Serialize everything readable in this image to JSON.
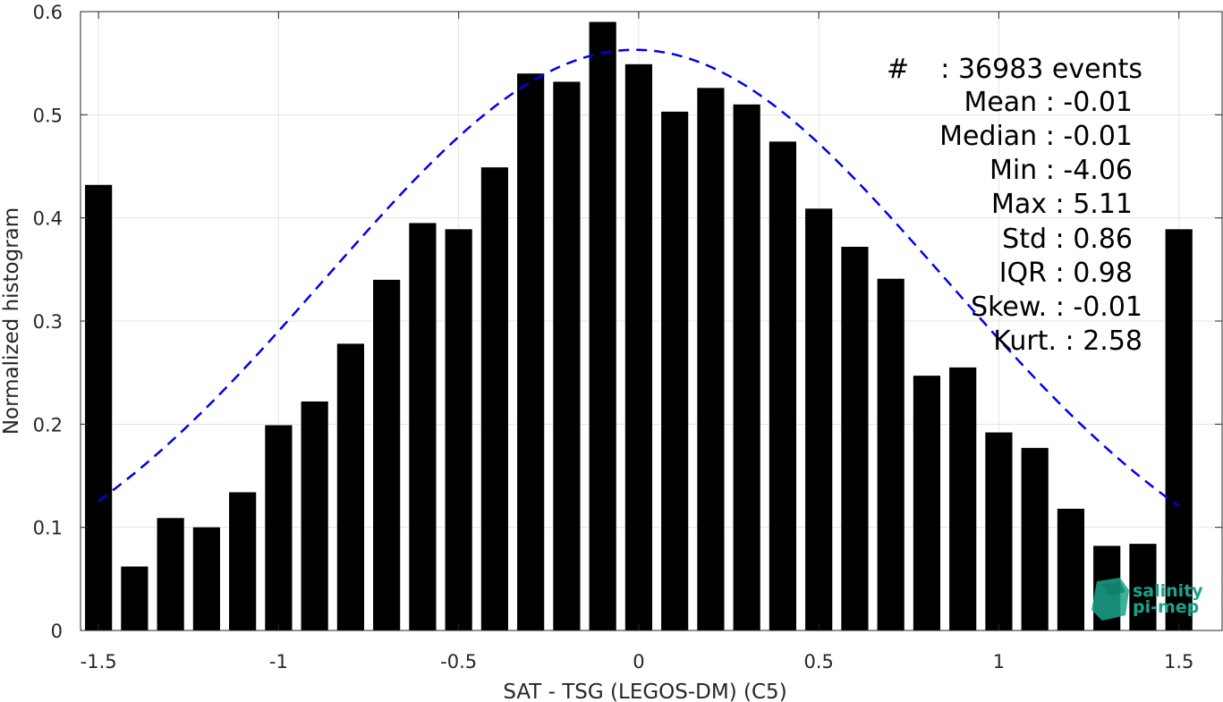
{
  "chart_data": {
    "type": "bar",
    "xlabel": "SAT - TSG (LEGOS-DM) (C5)",
    "ylabel": "Normalized histogram",
    "xlim": [
      -1.55,
      1.62
    ],
    "ylim": [
      0,
      0.6
    ],
    "x_ticks": [
      -1.5,
      -1,
      -0.5,
      0,
      0.5,
      1,
      1.5
    ],
    "x_tick_labels": [
      "-1.5",
      "-1",
      "-0.5",
      "0",
      "0.5",
      "1",
      "1.5"
    ],
    "y_ticks": [
      0,
      0.1,
      0.2,
      0.3,
      0.4,
      0.5,
      0.6
    ],
    "y_tick_labels": [
      "0",
      "0.1",
      "0.2",
      "0.3",
      "0.4",
      "0.5",
      "0.6"
    ],
    "grid": true,
    "bar_width": 0.075,
    "series": [
      {
        "x": [
          -1.5,
          -1.4,
          -1.3,
          -1.2,
          -1.1,
          -1.0,
          -0.9,
          -0.8,
          -0.7,
          -0.6,
          -0.5,
          -0.4,
          -0.3,
          -0.2,
          -0.1,
          0.0,
          0.1,
          0.2,
          0.3,
          0.4,
          0.5,
          0.6,
          0.7,
          0.8,
          0.9,
          1.0,
          1.1,
          1.2,
          1.3,
          1.4,
          1.5
        ],
        "values": [
          0.432,
          0.062,
          0.109,
          0.1,
          0.134,
          0.199,
          0.222,
          0.278,
          0.34,
          0.395,
          0.389,
          0.449,
          0.54,
          0.532,
          0.59,
          0.549,
          0.503,
          0.526,
          0.51,
          0.474,
          0.409,
          0.372,
          0.341,
          0.247,
          0.255,
          0.192,
          0.177,
          0.118,
          0.082,
          0.084,
          0.389
        ],
        "color": "#000000"
      }
    ],
    "fit_curve": {
      "style": "dashed",
      "color": "#0000ee",
      "mean": -0.01,
      "std": 0.86,
      "x_range": [
        -1.5,
        1.5
      ],
      "peak": 0.563
    }
  },
  "stats": [
    {
      "label": "#",
      "value": ": 36983 events"
    },
    {
      "text": "Mean : -0.01"
    },
    {
      "text": "Median : -0.01"
    },
    {
      "text": "Min : -4.06"
    },
    {
      "text": "Max : 5.11"
    },
    {
      "text": "Std : 0.86"
    },
    {
      "text": "IQR : 0.98"
    },
    {
      "text": "Skew. : -0.01"
    },
    {
      "text": "Kurt. : 2.58"
    }
  ],
  "logo": {
    "line1": "salinity",
    "line2": "pi-mep",
    "color": "#1aa38a"
  }
}
